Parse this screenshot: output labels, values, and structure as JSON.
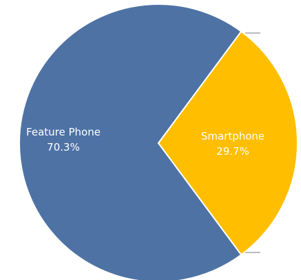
{
  "chart_data": {
    "type": "pie",
    "slices": [
      {
        "label": "Feature Phone",
        "value": 70.3,
        "value_label": "70.3%",
        "color": "#4E72A4",
        "label_color": "#FFFFFF"
      },
      {
        "label": "Smartphone",
        "value": 29.7,
        "value_label": "29.7%",
        "color": "#FFBE00",
        "label_color": "#1F1F1F"
      }
    ],
    "unit": "%",
    "legend": "none"
  }
}
